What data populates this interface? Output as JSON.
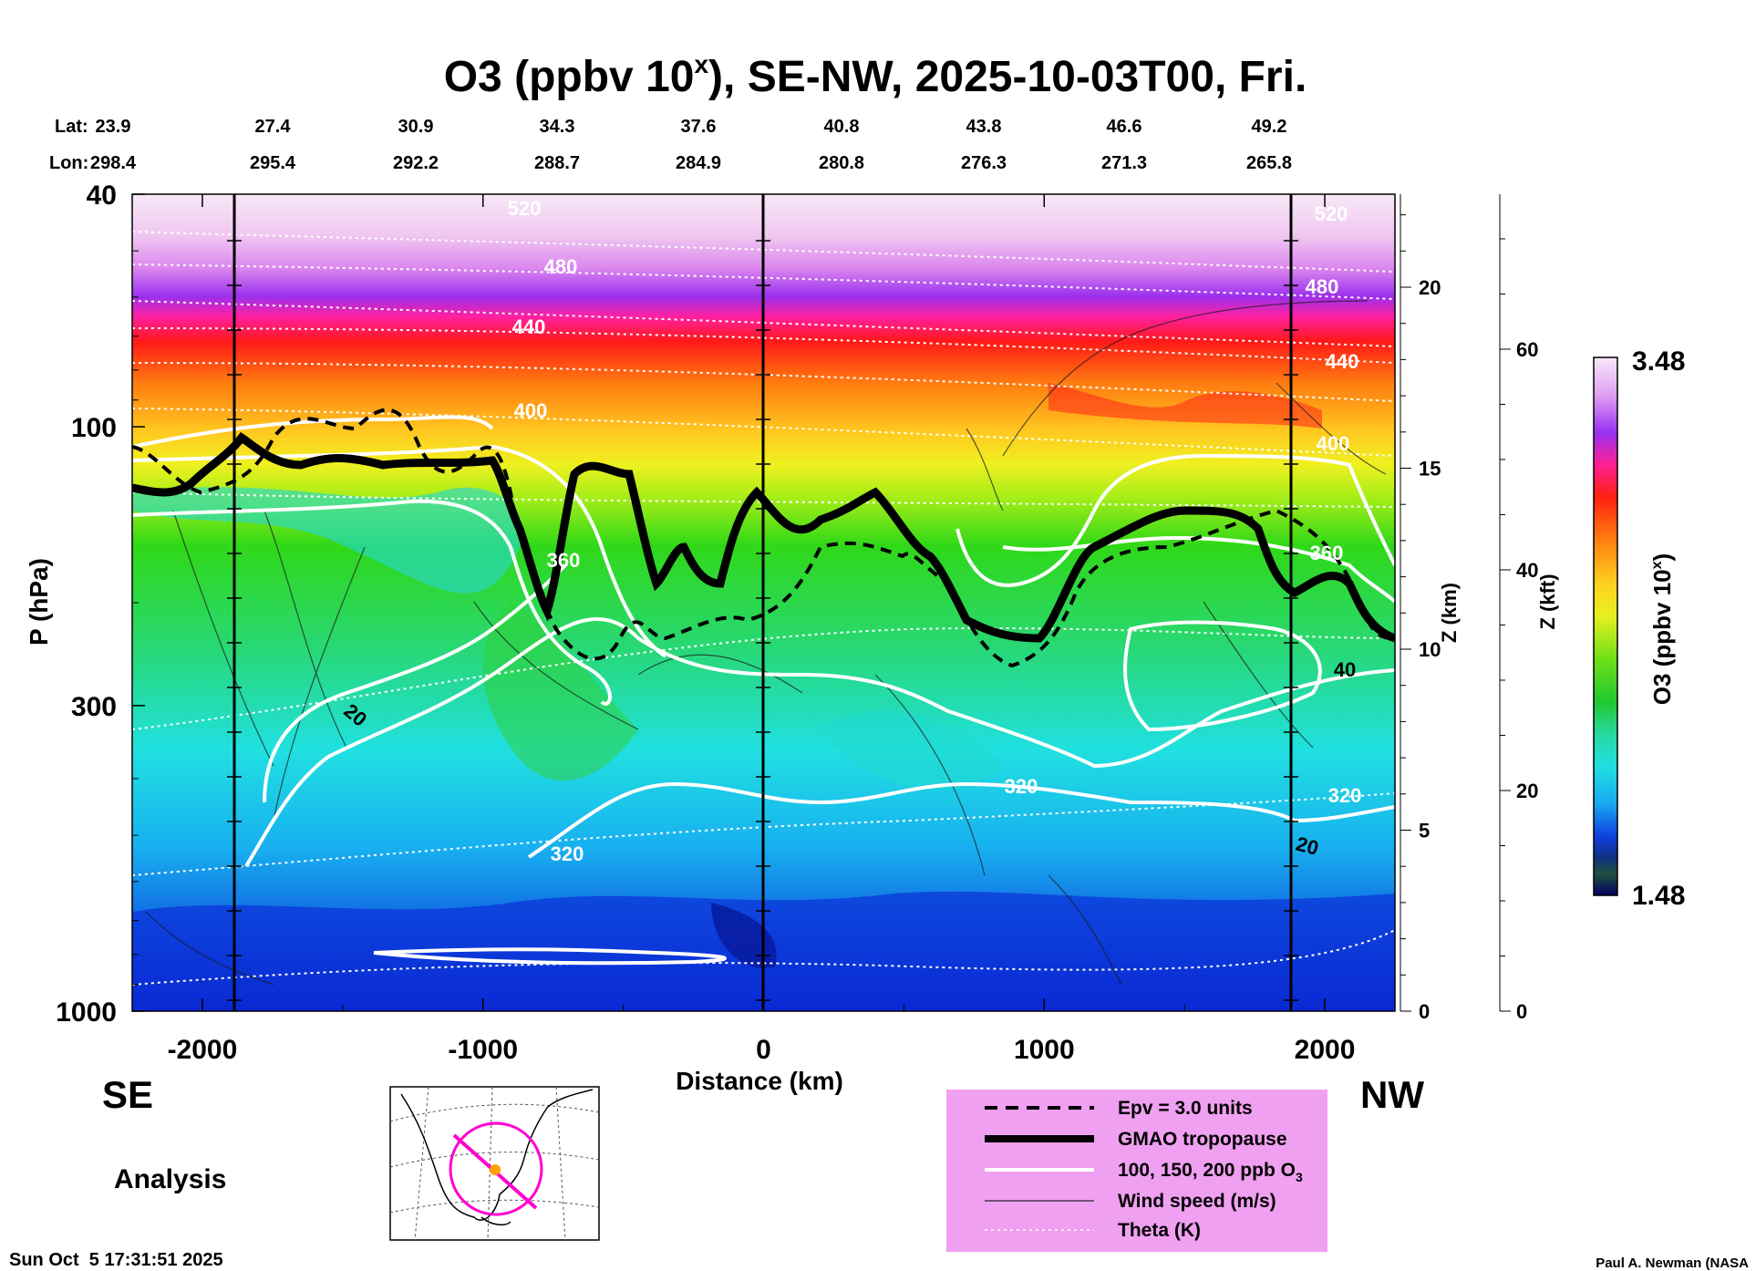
{
  "chart_data": {
    "type": "heatmap",
    "title_main": "O3 (ppbv 10",
    "title_sup": "x",
    "title_rest": "), SE-NW, 2025-10-03T00, Fri.",
    "lat_label": "Lat:",
    "lon_label": "Lon:",
    "lat_values": [
      "23.9",
      "27.4",
      "30.9",
      "34.3",
      "37.6",
      "40.8",
      "43.8",
      "46.6",
      "49.2"
    ],
    "lon_values": [
      "298.4",
      "295.4",
      "292.2",
      "288.7",
      "284.9",
      "280.8",
      "276.3",
      "271.3",
      "265.8"
    ],
    "xlabel": "Distance (km)",
    "ylabel": "P (hPa)",
    "zlabel_km": "Z (km)",
    "zlabel_kft": "Z (kft)",
    "xlim": [
      -2250,
      2250
    ],
    "ylim_hpa": [
      1000,
      40
    ],
    "y_scale": "log",
    "x_ticks": [
      "-2000",
      "-1000",
      "0",
      "1000",
      "2000"
    ],
    "y_ticks": [
      "40",
      "100",
      "300",
      "1000"
    ],
    "z_km_ticks": [
      "0",
      "5",
      "10",
      "15",
      "20"
    ],
    "z_kft_ticks": [
      "0",
      "20",
      "40",
      "60"
    ],
    "colorbar": {
      "label_main": "O3 (ppbv 10",
      "label_sup": "x",
      "label_close": ")",
      "max": "3.48",
      "min": "1.48"
    },
    "contour_labels": {
      "theta": [
        "520",
        "480",
        "440",
        "400",
        "360",
        "320",
        "320",
        "320",
        "360",
        "400",
        "440",
        "480",
        "520"
      ],
      "wind": [
        "20",
        "40",
        "20"
      ]
    },
    "legend": [
      {
        "style": "dashed",
        "label": "Epv = 3.0 units"
      },
      {
        "style": "thick",
        "label": "GMAO tropopause"
      },
      {
        "style": "white",
        "label": "100, 150, 200 ppb O",
        "sub": "3"
      },
      {
        "style": "thin",
        "label": "Wind speed (m/s)"
      },
      {
        "style": "dotted",
        "label": "Theta (K)"
      }
    ],
    "legend_placement": "bottom-right",
    "left_end_label": "SE",
    "right_end_label": "NW",
    "analysis_label": "Analysis",
    "timestamp": "Sun Oct  5 17:31:51 2025",
    "credit": "Paul A. Newman (NASA"
  }
}
